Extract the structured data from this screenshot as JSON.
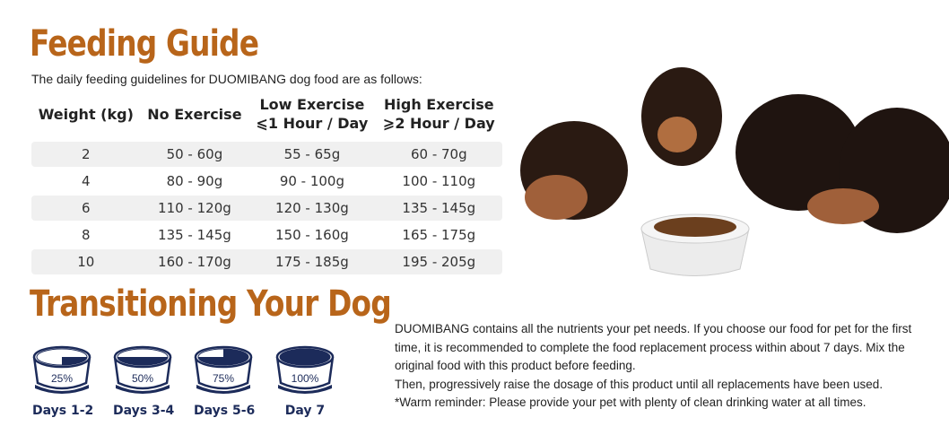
{
  "feeding": {
    "title": "Feeding Guide",
    "subtitle": "The daily feeding guidelines for DUOMIBANG dog food are as follows:",
    "headers": [
      {
        "l1": "Weight (kg)",
        "l2": ""
      },
      {
        "l1": "No Exercise",
        "l2": ""
      },
      {
        "l1": "Low Exercise",
        "l2": "⩽1 Hour / Day"
      },
      {
        "l1": "High Exercise",
        "l2": "⩾2 Hour / Day"
      }
    ],
    "rows": [
      [
        "2",
        "50 - 60g",
        "55 - 65g",
        "60 - 70g"
      ],
      [
        "4",
        "80 - 90g",
        "90 - 100g",
        "100 - 110g"
      ],
      [
        "6",
        "110 - 120g",
        "120 - 130g",
        "135 - 145g"
      ],
      [
        "8",
        "135 - 145g",
        "150 - 160g",
        "165 - 175g"
      ],
      [
        "10",
        "160 - 170g",
        "175 - 185g",
        "195 - 205g"
      ]
    ]
  },
  "transition": {
    "title": "Transitioning Your Dog",
    "steps": [
      {
        "percent_label": "25%",
        "fill": 0.25,
        "label": "Days 1-2"
      },
      {
        "percent_label": "50%",
        "fill": 0.5,
        "label": "Days 3-4"
      },
      {
        "percent_label": "75%",
        "fill": 0.75,
        "label": "Days 5-6"
      },
      {
        "percent_label": "100%",
        "fill": 1.0,
        "label": "Day 7"
      }
    ],
    "paragraphs": [
      "DUOMIBANG contains all the nutrients your pet needs. If you choose our food for pet for the first time, it is recommended to complete the food replacement process within about 7 days. Mix the original food with this product before feeding.",
      "Then, progressively raise the dosage of this product until all replacements have been used.",
      "*Warm reminder: Please provide your pet with plenty of clean drinking water at all times."
    ]
  },
  "colors": {
    "title": "#b8651a",
    "navy": "#1c2b5a"
  }
}
